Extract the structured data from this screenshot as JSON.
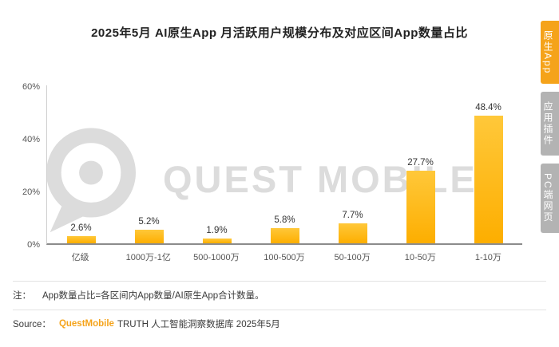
{
  "title": "2025年5月 AI原生App 月活跃用户规模分布及对应区间App数量占比",
  "side_tabs": [
    {
      "name": "tab-native-app",
      "label": "原生App",
      "active": true
    },
    {
      "name": "tab-app-plugin",
      "label": "应用插件",
      "active": false
    },
    {
      "name": "tab-pc-web",
      "label": "PC端网页",
      "active": false
    }
  ],
  "chart_data": {
    "type": "bar",
    "categories": [
      "亿级",
      "1000万-1亿",
      "500-1000万",
      "100-500万",
      "50-100万",
      "10-50万",
      "1-10万"
    ],
    "values": [
      2.6,
      5.2,
      1.9,
      5.8,
      7.7,
      27.7,
      48.4
    ],
    "value_labels": [
      "2.6%",
      "5.2%",
      "1.9%",
      "5.8%",
      "7.7%",
      "27.7%",
      "48.4%"
    ],
    "title": "2025年5月 AI原生App 月活跃用户规模分布及对应区间App数量占比",
    "xlabel": "",
    "ylabel": "",
    "ylim": [
      0,
      60
    ],
    "yticks": [
      "0%",
      "20%",
      "40%",
      "60%"
    ],
    "grid": false,
    "legend": null,
    "bar_color_top": "#ffc83a",
    "bar_color_bottom": "#fdae00"
  },
  "watermark": {
    "text": "QUEST MOBILE"
  },
  "note": {
    "prefix": "注：",
    "text": "App数量占比=各区间内App数量/AI原生App合计数量。"
  },
  "source": {
    "prefix": "Source：",
    "brand": "QuestMobile",
    "text": "TRUTH 人工智能洞察数据库 2025年5月"
  },
  "colors": {
    "accent": "#f5a31a",
    "tab_inactive": "#b3b3b3",
    "watermark_gray": "#dcdcdc"
  }
}
